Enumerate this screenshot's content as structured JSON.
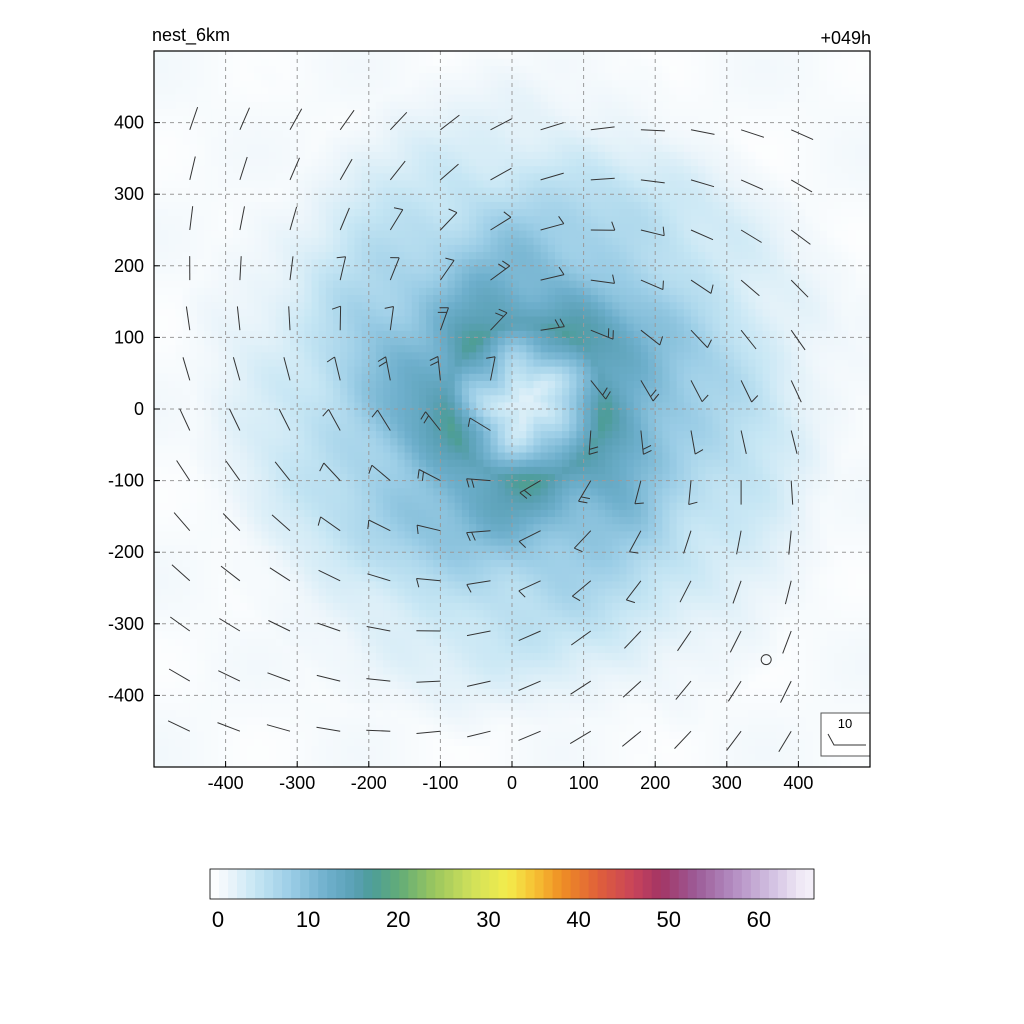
{
  "chart_data": {
    "type": "heatmap",
    "title_left": "nest_6km",
    "title_right": "+049h",
    "xlabel": "",
    "ylabel": "",
    "xlim": [
      -500,
      500
    ],
    "ylim": [
      -500,
      500
    ],
    "x_ticks": [
      -400,
      -300,
      -200,
      -100,
      0,
      100,
      200,
      300,
      400
    ],
    "y_ticks": [
      -400,
      -300,
      -200,
      -100,
      0,
      100,
      200,
      300,
      400
    ],
    "grid": true,
    "field": {
      "center": [
        20,
        10
      ],
      "eye_value": 3,
      "eye_radius": 40,
      "max_value": 17,
      "rmw": 110,
      "decay_radius": 520,
      "background": 1.5
    },
    "colorbar": {
      "min": 0,
      "max": 67,
      "ticks": [
        0,
        10,
        20,
        30,
        40,
        50,
        60
      ],
      "stops": [
        {
          "v": 0,
          "c": "#ffffff"
        },
        {
          "v": 2,
          "c": "#eef6fb"
        },
        {
          "v": 5,
          "c": "#c6e6f4"
        },
        {
          "v": 9,
          "c": "#9bcde6"
        },
        {
          "v": 13,
          "c": "#6eafcc"
        },
        {
          "v": 16,
          "c": "#5aa0b5"
        },
        {
          "v": 18,
          "c": "#4d9d98"
        },
        {
          "v": 21,
          "c": "#62ac78"
        },
        {
          "v": 25,
          "c": "#9cc75e"
        },
        {
          "v": 29,
          "c": "#cfe05a"
        },
        {
          "v": 33,
          "c": "#f3ec4c"
        },
        {
          "v": 36,
          "c": "#f6c133"
        },
        {
          "v": 39,
          "c": "#ef8f24"
        },
        {
          "v": 43,
          "c": "#e0603a"
        },
        {
          "v": 47,
          "c": "#c8435a"
        },
        {
          "v": 50,
          "c": "#a33565"
        },
        {
          "v": 54,
          "c": "#9c5c98"
        },
        {
          "v": 58,
          "c": "#b38cc1"
        },
        {
          "v": 62,
          "c": "#d0bde0"
        },
        {
          "v": 66,
          "c": "#f3eef8"
        }
      ]
    },
    "wind_barbs": {
      "spacing": 70,
      "reference_label": "10",
      "calm_marker": [
        355,
        -350
      ]
    },
    "colors": {
      "grid": "#9a9a9a",
      "barb": "#333333",
      "frame": "#000000"
    }
  }
}
